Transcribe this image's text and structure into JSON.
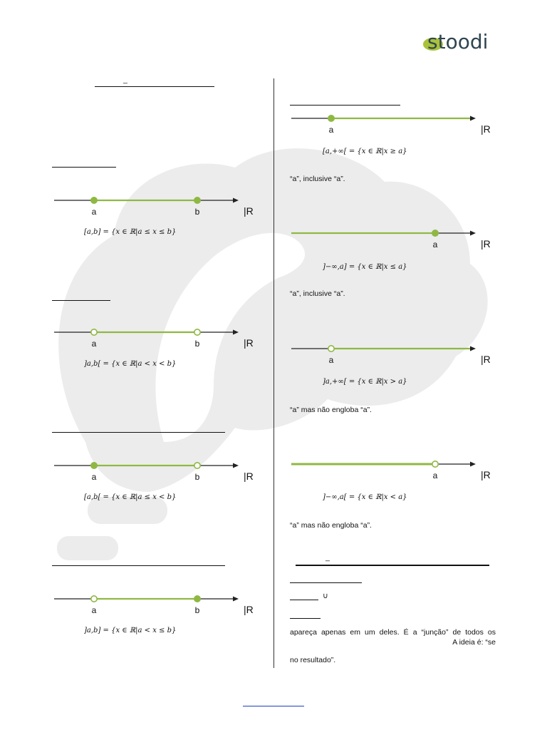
{
  "brand": {
    "logo_text": "stoodi",
    "accent_color": "#8fb843",
    "logo_dark": "#2f4550"
  },
  "colors": {
    "interval": "#8fb843",
    "axis": "#222222",
    "watermark": "#ececec",
    "link": "#1f3fbf"
  },
  "axis_label": "|R",
  "left": {
    "heading_dash": "_",
    "number_lines": [
      {
        "points": [
          {
            "label": "a",
            "closed": true
          },
          {
            "label": "b",
            "closed": true
          }
        ],
        "formula": "[a,b] = {x ∈ ℝ|a ≤ x ≤ b}"
      },
      {
        "points": [
          {
            "label": "a",
            "closed": false
          },
          {
            "label": "b",
            "closed": false
          }
        ],
        "formula": "]a,b[ = {x ∈ ℝ|a < x < b}"
      },
      {
        "points": [
          {
            "label": "a",
            "closed": true
          },
          {
            "label": "b",
            "closed": false
          }
        ],
        "formula": "[a,b[ = {x ∈ ℝ|a ≤ x < b}"
      },
      {
        "points": [
          {
            "label": "a",
            "closed": false
          },
          {
            "label": "b",
            "closed": true
          }
        ],
        "formula": "]a,b] = {x ∈ ℝ|a < x ≤ b}"
      }
    ]
  },
  "right": {
    "number_lines": [
      {
        "ray": "right",
        "points": [
          {
            "label": "a",
            "closed": true
          }
        ],
        "formula": "[a,+∞[ = {x ∈ ℝ|x ≥ a}",
        "note": "“a”, inclusive “a”."
      },
      {
        "ray": "left",
        "points": [
          {
            "label": "a",
            "closed": true
          }
        ],
        "formula": "]−∞,a] = {x ∈ ℝ|x ≤ a}",
        "note": "“a”, inclusive “a”."
      },
      {
        "ray": "right",
        "points": [
          {
            "label": "a",
            "closed": false
          }
        ],
        "formula": "]a,+∞[ = {x ∈ ℝ|x > a}",
        "note": "“a” mas não engloba “a”."
      },
      {
        "ray": "left",
        "points": [
          {
            "label": "a",
            "closed": false
          }
        ],
        "formula": "]−∞,a[ = {x ∈ ℝ|x < a}",
        "note": "“a” mas não engloba “a”."
      }
    ],
    "section_dash": "_",
    "union_symbol": "∪",
    "paragraph_line1": "apareça apenas em um deles. É a “junção” de todos os",
    "paragraph_line2": "A ideia é: “se",
    "paragraph_line3": "no resultado”."
  }
}
